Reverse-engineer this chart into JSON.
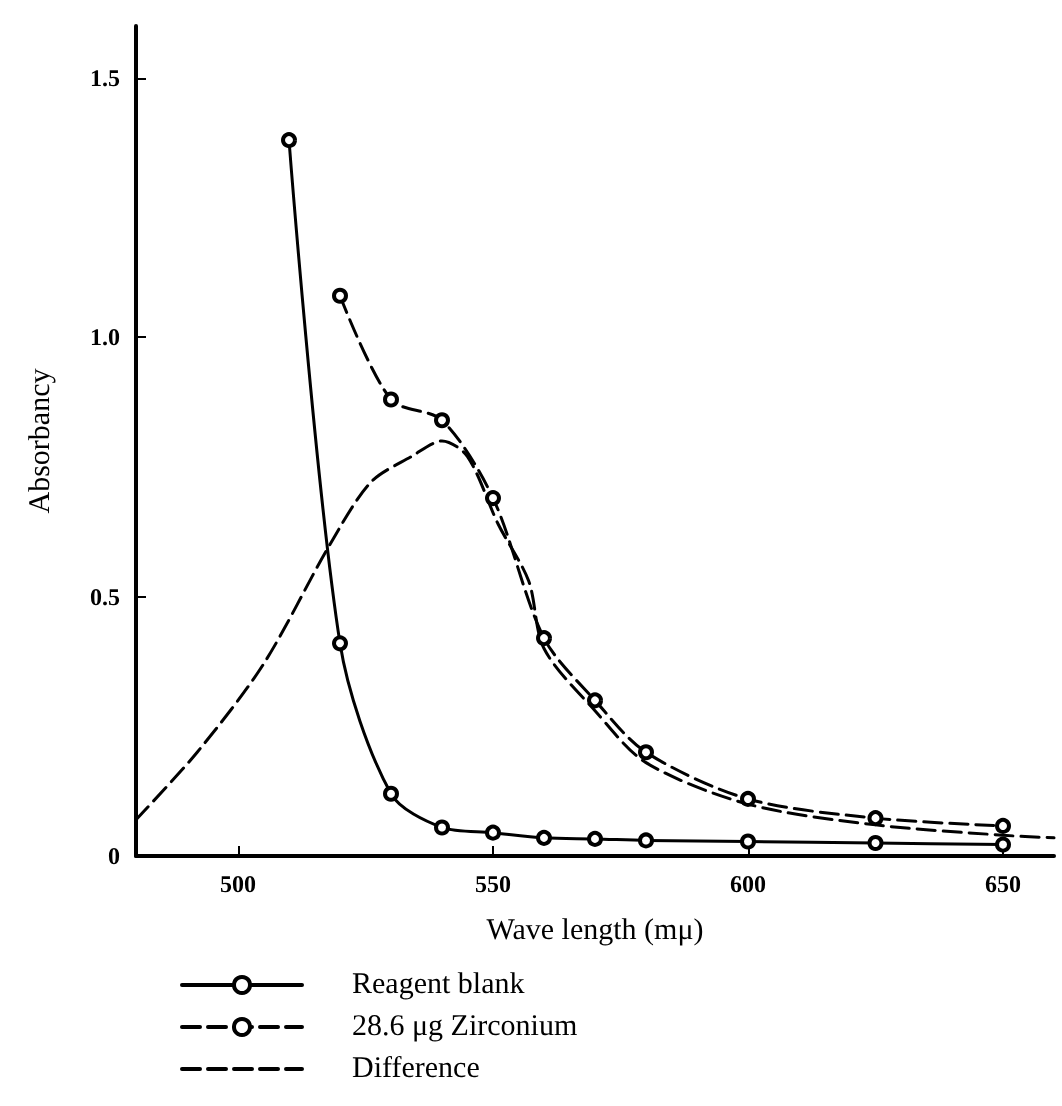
{
  "chart_data": {
    "type": "line",
    "xlabel": "Wave length (mμ)",
    "ylabel": "Absorbancy",
    "xlim": [
      480,
      660
    ],
    "xticks": [
      500,
      550,
      600,
      650
    ],
    "ylim": [
      0,
      1.6
    ],
    "yticks": [
      0,
      {
        "value": 0.5,
        "label": "0.5"
      },
      {
        "value": 1,
        "label": "1.0"
      },
      {
        "value": 1.5,
        "label": "1.5"
      }
    ],
    "grid": false,
    "legend": "bottom",
    "series": [
      {
        "name": "Reagent blank",
        "color": "#000000",
        "line_style": "solid",
        "marker": "circle",
        "x": [
          510,
          520,
          530,
          540,
          550,
          560,
          570,
          580,
          600,
          625,
          650
        ],
        "values": [
          1.38,
          0.41,
          0.12,
          0.055,
          0.045,
          0.035,
          0.033,
          0.03,
          0.028,
          0.025,
          0.022
        ]
      },
      {
        "name": "28.6 μg Zirconium",
        "color": "#000000",
        "line_style": "dashed",
        "marker": "circle",
        "x": [
          520,
          530,
          540,
          550,
          560,
          570,
          580,
          600,
          625,
          650
        ],
        "values": [
          1.08,
          0.88,
          0.84,
          0.69,
          0.42,
          0.3,
          0.2,
          0.11,
          0.073,
          0.058
        ]
      },
      {
        "name": "Difference",
        "color": "#000000",
        "line_style": "dashed",
        "marker": "none",
        "x": [
          480,
          492,
          505,
          518,
          526,
          534,
          540,
          545,
          551,
          557,
          560,
          570,
          580,
          600,
          625,
          650,
          660
        ],
        "values": [
          0.07,
          0.2,
          0.37,
          0.6,
          0.72,
          0.77,
          0.8,
          0.77,
          0.64,
          0.53,
          0.4,
          0.28,
          0.18,
          0.1,
          0.06,
          0.04,
          0.035
        ]
      }
    ]
  }
}
